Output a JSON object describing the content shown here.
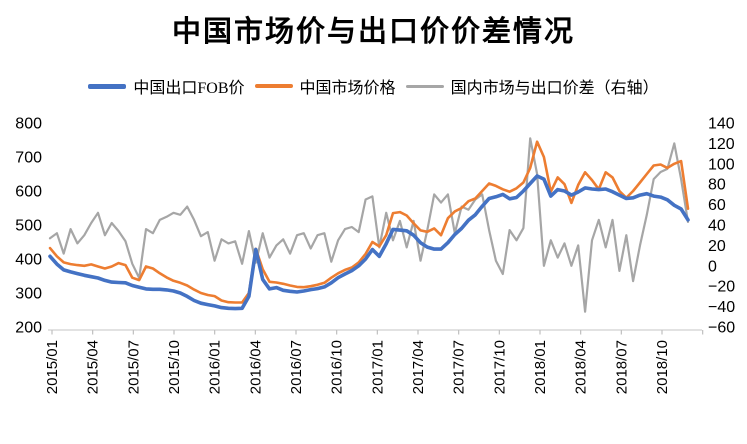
{
  "title": "中国市场价与出口价价差情况",
  "legend": [
    {
      "label": "中国出口FOB价",
      "color": "#4472C4",
      "thickness": 5
    },
    {
      "label": "中国市场价格",
      "color": "#ED7D31",
      "thickness": 4
    },
    {
      "label": "国内市场与出口价差（右轴）",
      "color": "#A6A6A6",
      "thickness": 3
    }
  ],
  "chart_data": {
    "type": "line",
    "title": "中国市场价与出口价价差情况",
    "sampling": "semi-monthly estimates, 2015/01 to 2018/11",
    "x_tick_labels": [
      "2015/01",
      "2015/04",
      "2015/07",
      "2015/10",
      "2016/01",
      "2016/04",
      "2016/07",
      "2016/10",
      "2017/01",
      "2017/04",
      "2017/07",
      "2017/10",
      "2018/01",
      "2018/04",
      "2018/07",
      "2018/10"
    ],
    "left_axis": {
      "min": 200,
      "max": 800,
      "step": 100,
      "ticks": [
        800,
        700,
        600,
        500,
        400,
        300,
        200
      ]
    },
    "right_axis": {
      "min": -60,
      "max": 140,
      "step": 20,
      "ticks": [
        140,
        120,
        100,
        80,
        60,
        40,
        20,
        0,
        -20,
        -40,
        -60
      ]
    },
    "grid": false,
    "legend_position": "top",
    "series": [
      {
        "name": "中国出口FOB价",
        "axis": "left",
        "color": "#4472C4",
        "width": 3.6,
        "values": [
          408,
          385,
          368,
          362,
          357,
          352,
          348,
          344,
          337,
          332,
          331,
          330,
          322,
          317,
          312,
          311,
          311,
          309,
          306,
          300,
          290,
          278,
          270,
          266,
          262,
          257,
          255,
          254,
          255,
          290,
          428,
          340,
          312,
          316,
          308,
          305,
          303,
          306,
          310,
          313,
          318,
          330,
          345,
          356,
          366,
          380,
          400,
          428,
          408,
          445,
          487,
          485,
          483,
          470,
          448,
          435,
          429,
          429,
          448,
          472,
          490,
          514,
          530,
          555,
          578,
          583,
          590,
          577,
          581,
          600,
          622,
          644,
          635,
          585,
          604,
          600,
          588,
          597,
          609,
          606,
          604,
          606,
          598,
          588,
          578,
          580,
          588,
          592,
          585,
          582,
          574,
          558,
          547,
          515
        ]
      },
      {
        "name": "中国市场价格",
        "axis": "left",
        "color": "#ED7D31",
        "width": 2.6,
        "values": [
          432,
          408,
          390,
          385,
          382,
          380,
          384,
          378,
          372,
          378,
          388,
          382,
          345,
          338,
          378,
          372,
          358,
          346,
          336,
          330,
          322,
          310,
          300,
          294,
          291,
          278,
          273,
          272,
          272,
          300,
          430,
          370,
          333,
          331,
          327,
          322,
          318,
          317,
          320,
          324,
          330,
          345,
          358,
          368,
          375,
          390,
          415,
          450,
          437,
          470,
          535,
          538,
          528,
          505,
          484,
          480,
          490,
          470,
          520,
          540,
          550,
          570,
          578,
          600,
          622,
          615,
          605,
          598,
          608,
          625,
          668,
          745,
          700,
          598,
          640,
          620,
          565,
          618,
          655,
          632,
          605,
          655,
          640,
          600,
          580,
          600,
          625,
          650,
          675,
          678,
          668,
          680,
          688,
          548
        ]
      },
      {
        "name": "国内市场与出口价差（右轴）",
        "axis": "right",
        "color": "#A6A6A6",
        "width": 2.2,
        "values": [
          27,
          32,
          12,
          36,
          22,
          30,
          42,
          52,
          30,
          42,
          34,
          24,
          2,
          -12,
          36,
          32,
          45,
          48,
          52,
          50,
          58,
          45,
          29,
          33,
          5,
          26,
          22,
          24,
          2,
          34,
          3,
          32,
          8,
          20,
          26,
          12,
          30,
          32,
          17,
          30,
          32,
          4,
          25,
          36,
          38,
          33,
          65,
          68,
          18,
          52,
          25,
          44,
          18,
          44,
          5,
          35,
          70,
          62,
          70,
          32,
          58,
          55,
          65,
          70,
          35,
          5,
          -8,
          35,
          25,
          37,
          125,
          90,
          0,
          25,
          8,
          22,
          0,
          20,
          -45,
          25,
          45,
          18,
          45,
          -5,
          30,
          -15,
          20,
          50,
          85,
          92,
          95,
          120,
          85,
          43
        ]
      }
    ]
  }
}
